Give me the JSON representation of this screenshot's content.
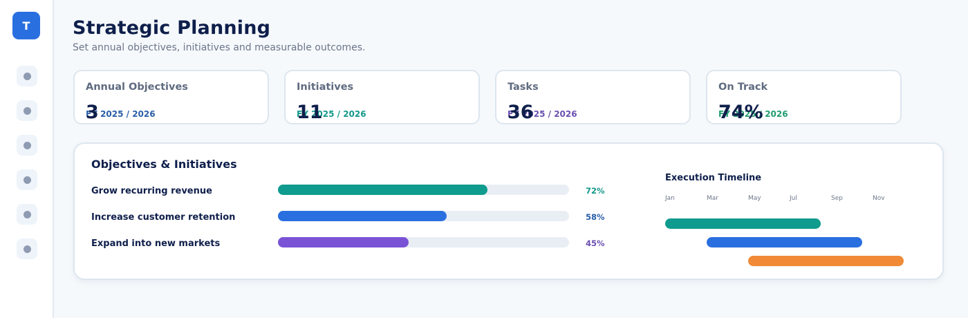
{
  "app": {
    "logo_letter": "T"
  },
  "sidebar": {
    "items": [
      {
        "icon": "nav-dot-icon"
      },
      {
        "icon": "nav-dot-icon"
      },
      {
        "icon": "nav-dot-icon"
      },
      {
        "icon": "nav-dot-icon"
      },
      {
        "icon": "nav-dot-icon"
      },
      {
        "icon": "nav-dot-icon"
      }
    ]
  },
  "header": {
    "title": "Strategic Planning",
    "subtitle": "Set annual objectives, initiatives and measurable outcomes."
  },
  "kpis": [
    {
      "label": "Annual Objectives",
      "value": "3",
      "period": "FY 2025 / 2026",
      "color": "#2a5fa8"
    },
    {
      "label": "Initiatives",
      "value": "11",
      "period": "FY 2025 / 2026",
      "color": "#13998a"
    },
    {
      "label": "Tasks",
      "value": "36",
      "period": "FY 2025 / 2026",
      "color": "#6a4fb0"
    },
    {
      "label": "On Track",
      "value": "74%",
      "period": "FY 2025 / 2026",
      "color": "#1f9c6e"
    }
  ],
  "objectives": {
    "title": "Objectives & Initiatives",
    "items": [
      {
        "name": "Grow recurring revenue",
        "progress": 72,
        "progress_label": "72%",
        "color": "#0f9b8e",
        "label_color": "#13998a"
      },
      {
        "name": "Increase customer retention",
        "progress": 58,
        "progress_label": "58%",
        "color": "#2a6fe0",
        "label_color": "#2a5fa8"
      },
      {
        "name": "Expand into new markets",
        "progress": 45,
        "progress_label": "45%",
        "color": "#7a52d6",
        "label_color": "#6a4fb0"
      }
    ]
  },
  "timeline": {
    "title": "Execution Timeline",
    "months": [
      "Jan",
      "Mar",
      "May",
      "Jul",
      "Sep",
      "Nov"
    ],
    "bars": [
      {
        "start_month": 0,
        "end_month": 7.5,
        "color": "#0f9b8e"
      },
      {
        "start_month": 2,
        "end_month": 9.5,
        "color": "#2a6fe0"
      },
      {
        "start_month": 4,
        "end_month": 11.5,
        "color": "#f08a36"
      }
    ]
  }
}
